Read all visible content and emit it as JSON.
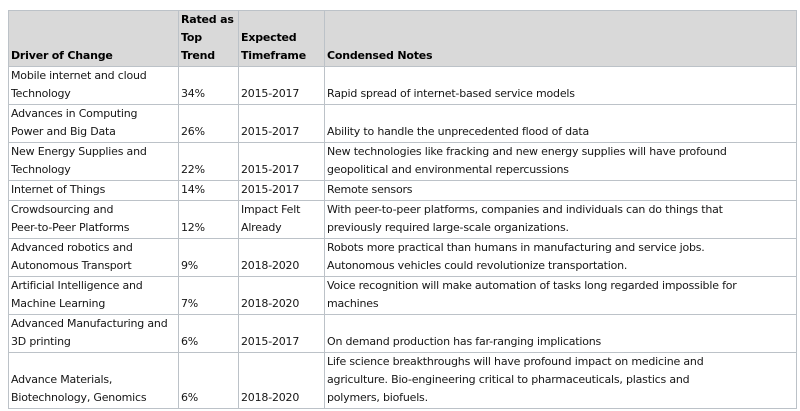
{
  "table": {
    "columns": [
      {
        "id": "driver",
        "label": "Driver of Change"
      },
      {
        "id": "top_trend",
        "label": "Rated as\nTop\nTrend"
      },
      {
        "id": "timeframe",
        "label": "Expected\nTimeframe"
      },
      {
        "id": "notes",
        "label": "Condensed Notes"
      }
    ],
    "rows": [
      {
        "driver": "Mobile internet and cloud\nTechnology",
        "top_trend": "34%",
        "timeframe": "2015-2017",
        "notes": "Rapid spread of internet-based service models"
      },
      {
        "driver": "Advances in Computing\nPower and Big Data",
        "top_trend": "26%",
        "timeframe": "2015-2017",
        "notes": "Ability to handle the unprecedented flood of data"
      },
      {
        "driver": "New Energy Supplies and\nTechnology",
        "top_trend": "22%",
        "timeframe": "2015-2017",
        "notes": "New technologies like fracking and new energy supplies will have profound\ngeopolitical and environmental repercussions"
      },
      {
        "driver": "Internet of Things",
        "top_trend": "14%",
        "timeframe": "2015-2017",
        "notes": "Remote sensors"
      },
      {
        "driver": "Crowdsourcing and\nPeer-to-Peer Platforms",
        "top_trend": "12%",
        "timeframe": "Impact Felt\nAlready",
        "notes": "With peer-to-peer platforms, companies and individuals can do things that\npreviously required large-scale organizations."
      },
      {
        "driver": "Advanced robotics and\nAutonomous Transport",
        "top_trend": "9%",
        "timeframe": "2018-2020",
        "notes": "Robots more practical than humans in manufacturing and service jobs.\nAutonomous vehicles could revolutionize transportation."
      },
      {
        "driver": "Artificial Intelligence and\nMachine Learning",
        "top_trend": "7%",
        "timeframe": "2018-2020",
        "notes": "Voice recognition will make automation of tasks long regarded impossible for\nmachines"
      },
      {
        "driver": "Advanced Manufacturing and\n3D printing",
        "top_trend": "6%",
        "timeframe": "2015-2017",
        "notes": "On demand production has far-ranging implications"
      },
      {
        "driver": "Advance Materials,\nBiotechnology, Genomics",
        "top_trend": "6%",
        "timeframe": "2018-2020",
        "notes": "Life science breakthroughs will have profound impact on medicine and\nagriculture. Bio-engineering critical to pharmaceuticals, plastics and\npolymers, biofuels."
      }
    ],
    "colors": {
      "header_background": "#d9d9d9",
      "border": "#bcc2c8",
      "text": "#161616"
    }
  }
}
